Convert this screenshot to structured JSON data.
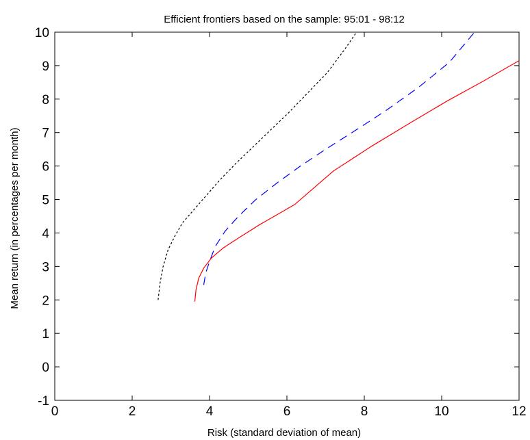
{
  "chart_data": {
    "type": "line",
    "title": "Efficient frontiers based on the sample: 95:01 - 98:12",
    "xlabel": "Risk (standard deviation of mean)",
    "ylabel": "Mean return (in percentages per month)",
    "xlim": [
      0,
      12
    ],
    "ylim": [
      -1,
      10
    ],
    "xticks": [
      0,
      2,
      4,
      6,
      8,
      10,
      12
    ],
    "yticks": [
      -1,
      0,
      1,
      2,
      3,
      4,
      5,
      6,
      7,
      8,
      9,
      10
    ],
    "xtick_labels": [
      "0",
      "2",
      "4",
      "6",
      "8",
      "10",
      "12"
    ],
    "ytick_labels": [
      "-1",
      "0",
      "1",
      "2",
      "3",
      "4",
      "5",
      "6",
      "7",
      "8",
      "9",
      "10"
    ],
    "grid": false,
    "legend": "none",
    "series": [
      {
        "color": "#000000",
        "style": "dotted",
        "x": [
          2.67,
          2.72,
          2.8,
          2.93,
          3.1,
          3.3,
          3.6,
          3.9,
          4.28,
          4.7,
          5.15,
          5.6,
          6.05,
          6.55,
          7.05,
          7.5,
          7.8
        ],
        "y": [
          2.0,
          2.5,
          3.0,
          3.5,
          3.9,
          4.3,
          4.7,
          5.1,
          5.6,
          6.1,
          6.6,
          7.1,
          7.6,
          8.2,
          8.8,
          9.5,
          10.0
        ]
      },
      {
        "color": "#0000ff",
        "style": "dashed",
        "x": [
          3.85,
          3.9,
          4.0,
          4.15,
          4.4,
          4.75,
          5.2,
          5.75,
          6.35,
          7.0,
          7.75,
          8.55,
          9.4,
          10.2,
          10.85
        ],
        "y": [
          2.45,
          2.8,
          3.15,
          3.6,
          4.05,
          4.5,
          5.0,
          5.5,
          6.0,
          6.5,
          7.05,
          7.65,
          8.35,
          9.1,
          10.0
        ]
      },
      {
        "color": "#ff0000",
        "style": "solid",
        "x": [
          3.62,
          3.65,
          3.72,
          3.85,
          4.05,
          4.35,
          4.75,
          5.3,
          6.2,
          7.2,
          8.2,
          9.2,
          10.15,
          11.1,
          12.0
        ],
        "y": [
          1.95,
          2.3,
          2.65,
          2.95,
          3.25,
          3.55,
          3.85,
          4.25,
          4.85,
          5.85,
          6.6,
          7.3,
          7.95,
          8.55,
          9.15
        ]
      }
    ]
  }
}
